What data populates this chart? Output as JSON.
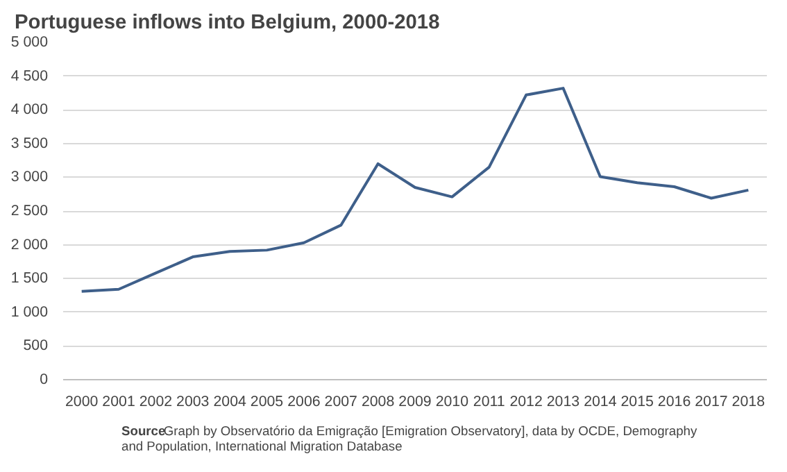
{
  "chart_data": {
    "type": "line",
    "title": "Portuguese inflows into Belgium, 2000-2018",
    "categories": [
      "2000",
      "2001",
      "2002",
      "2003",
      "2004",
      "2005",
      "2006",
      "2007",
      "2008",
      "2009",
      "2010",
      "2011",
      "2012",
      "2013",
      "2014",
      "2015",
      "2016",
      "2017",
      "2018"
    ],
    "series": [
      {
        "color": "#3e5f8a",
        "values": [
          1310,
          1340,
          1580,
          1820,
          1900,
          1920,
          2030,
          2290,
          3200,
          2850,
          2710,
          3150,
          4220,
          4320,
          3010,
          2920,
          2860,
          2690,
          2810
        ]
      }
    ],
    "ylim": [
      0,
      5000
    ],
    "yticks": [
      0,
      500,
      {
        "value": 1000,
        "label": "1 000"
      },
      {
        "value": 1500,
        "label": "1 500"
      },
      {
        "value": 2000,
        "label": "2 000"
      },
      {
        "value": 2500,
        "label": "2 500"
      },
      {
        "value": 3000,
        "label": "3 000"
      },
      {
        "value": 3500,
        "label": "3 500"
      },
      {
        "value": 4000,
        "label": "4 000"
      },
      {
        "value": 4500,
        "label": "4 500"
      },
      {
        "value": 5000,
        "label": "5 000"
      }
    ],
    "grid": "y",
    "annotations": [
      "Source",
      "Graph by Observatório da Emigração [Emigration Observatory], data by OCDE, Demography and Population, International Migration Database"
    ]
  }
}
